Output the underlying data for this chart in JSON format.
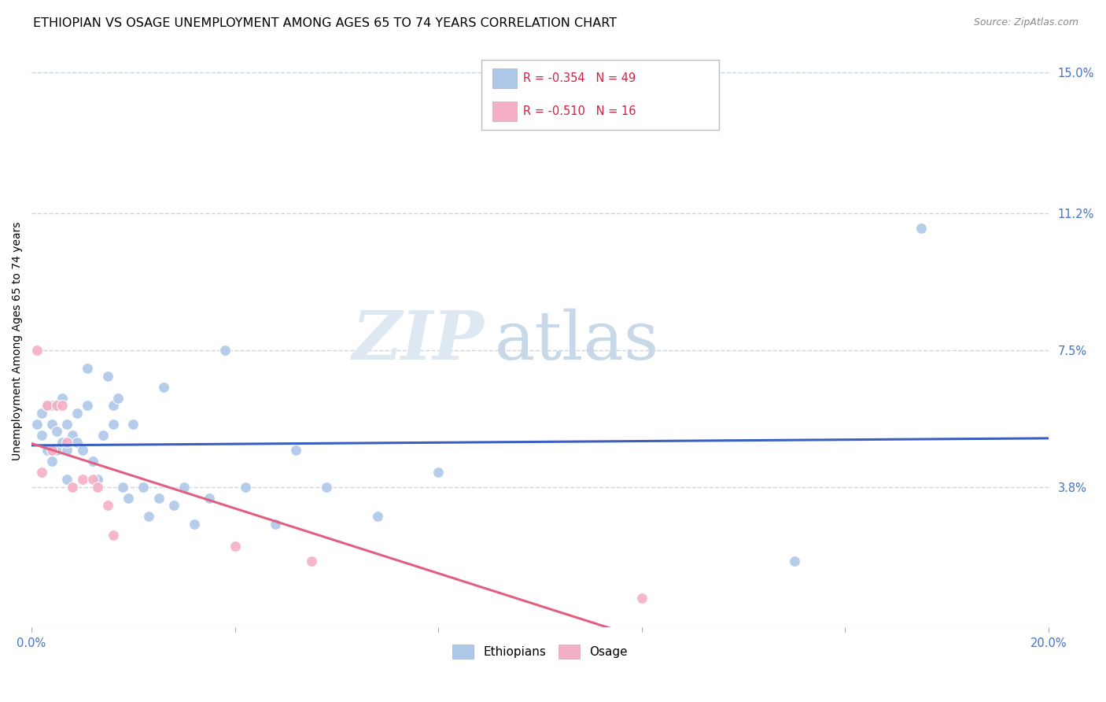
{
  "title": "ETHIOPIAN VS OSAGE UNEMPLOYMENT AMONG AGES 65 TO 74 YEARS CORRELATION CHART",
  "source": "Source: ZipAtlas.com",
  "ylabel": "Unemployment Among Ages 65 to 74 years",
  "xlim": [
    0.0,
    0.2
  ],
  "ylim": [
    0.0,
    0.155
  ],
  "xticks": [
    0.0,
    0.04,
    0.08,
    0.12,
    0.16,
    0.2
  ],
  "xticklabels": [
    "0.0%",
    "",
    "",
    "",
    "",
    "20.0%"
  ],
  "right_yticks": [
    0.038,
    0.075,
    0.112,
    0.15
  ],
  "right_yticklabels": [
    "3.8%",
    "7.5%",
    "11.2%",
    "15.0%"
  ],
  "watermark_zip": "ZIP",
  "watermark_atlas": "atlas",
  "ethiopian_color": "#adc8e8",
  "osage_color": "#f4b0c4",
  "ethiopian_line_color": "#3b5fc0",
  "osage_line_color": "#e06080",
  "background_color": "#ffffff",
  "grid_color": "#c8d4e8",
  "title_fontsize": 11.5,
  "axis_label_fontsize": 10,
  "tick_fontsize": 10.5,
  "marker_size": 100,
  "ethiopian_x": [
    0.001,
    0.002,
    0.002,
    0.003,
    0.003,
    0.004,
    0.004,
    0.004,
    0.005,
    0.005,
    0.005,
    0.006,
    0.006,
    0.007,
    0.007,
    0.007,
    0.008,
    0.009,
    0.009,
    0.01,
    0.011,
    0.011,
    0.012,
    0.013,
    0.014,
    0.015,
    0.016,
    0.016,
    0.017,
    0.018,
    0.019,
    0.02,
    0.022,
    0.023,
    0.025,
    0.026,
    0.028,
    0.03,
    0.032,
    0.035,
    0.038,
    0.042,
    0.048,
    0.052,
    0.058,
    0.068,
    0.08,
    0.15,
    0.175
  ],
  "ethiopian_y": [
    0.055,
    0.058,
    0.052,
    0.06,
    0.048,
    0.06,
    0.055,
    0.045,
    0.06,
    0.053,
    0.048,
    0.062,
    0.05,
    0.055,
    0.048,
    0.04,
    0.052,
    0.058,
    0.05,
    0.048,
    0.07,
    0.06,
    0.045,
    0.04,
    0.052,
    0.068,
    0.06,
    0.055,
    0.062,
    0.038,
    0.035,
    0.055,
    0.038,
    0.03,
    0.035,
    0.065,
    0.033,
    0.038,
    0.028,
    0.035,
    0.075,
    0.038,
    0.028,
    0.048,
    0.038,
    0.03,
    0.042,
    0.018,
    0.108
  ],
  "osage_x": [
    0.001,
    0.002,
    0.003,
    0.004,
    0.005,
    0.006,
    0.007,
    0.008,
    0.01,
    0.012,
    0.013,
    0.015,
    0.016,
    0.04,
    0.055,
    0.12
  ],
  "osage_y": [
    0.075,
    0.042,
    0.06,
    0.048,
    0.06,
    0.06,
    0.05,
    0.038,
    0.04,
    0.04,
    0.038,
    0.033,
    0.025,
    0.022,
    0.018,
    0.008
  ]
}
